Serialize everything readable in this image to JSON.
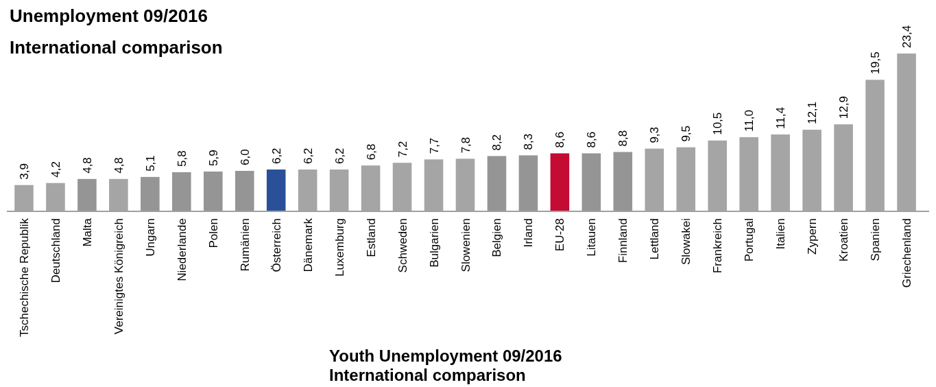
{
  "chart_data": {
    "type": "bar",
    "title": "Unemployment 09/2016",
    "subtitle": "International comparison",
    "annotations": [
      "Youth Unemployment 09/2016\nInternational comparison"
    ],
    "categories": [
      "Tschechische Republik",
      "Deutschland",
      "Malta",
      "Vereinigtes Königreich",
      "Ungarn",
      "Niederlande",
      "Polen",
      "Rumänien",
      "Österreich",
      "Dänemark",
      "Luxemburg",
      "Estland",
      "Schweden",
      "Bulgarien",
      "Slowenien",
      "Belgien",
      "Irland",
      "EU-28",
      "Litauen",
      "Finnland",
      "Lettland",
      "Slowakei",
      "Frankreich",
      "Portugal",
      "Italien",
      "Zypern",
      "Kroatien",
      "Spanien",
      "Griechenland"
    ],
    "values": [
      3.9,
      4.2,
      4.8,
      4.8,
      5.1,
      5.8,
      5.9,
      6.0,
      6.2,
      6.2,
      6.2,
      6.8,
      7.2,
      7.7,
      7.8,
      8.2,
      8.3,
      8.6,
      8.6,
      8.8,
      9.3,
      9.5,
      10.5,
      11.0,
      11.4,
      12.1,
      12.9,
      19.5,
      23.4
    ],
    "value_labels": [
      "3,9",
      "4,2",
      "4,8",
      "4,8",
      "5,1",
      "5,8",
      "5,9",
      "6,0",
      "6,2",
      "6,2",
      "6,2",
      "6,8",
      "7,2",
      "7,7",
      "7,8",
      "8,2",
      "8,3",
      "8,6",
      "8,6",
      "8,8",
      "9,3",
      "9,5",
      "10,5",
      "11,0",
      "11,4",
      "12,1",
      "12,9",
      "19,5",
      "23,4"
    ],
    "colors": [
      "#a5a5a5",
      "#a5a5a5",
      "#959595",
      "#a5a5a5",
      "#959595",
      "#959595",
      "#959595",
      "#959595",
      "#2a5099",
      "#a5a5a5",
      "#a5a5a5",
      "#a5a5a5",
      "#a5a5a5",
      "#a5a5a5",
      "#a5a5a5",
      "#959595",
      "#959595",
      "#c30b33",
      "#959595",
      "#959595",
      "#a5a5a5",
      "#a5a5a5",
      "#a5a5a5",
      "#a5a5a5",
      "#a5a5a5",
      "#a5a5a5",
      "#a5a5a5",
      "#a5a5a5",
      "#a5a5a5"
    ]
  }
}
